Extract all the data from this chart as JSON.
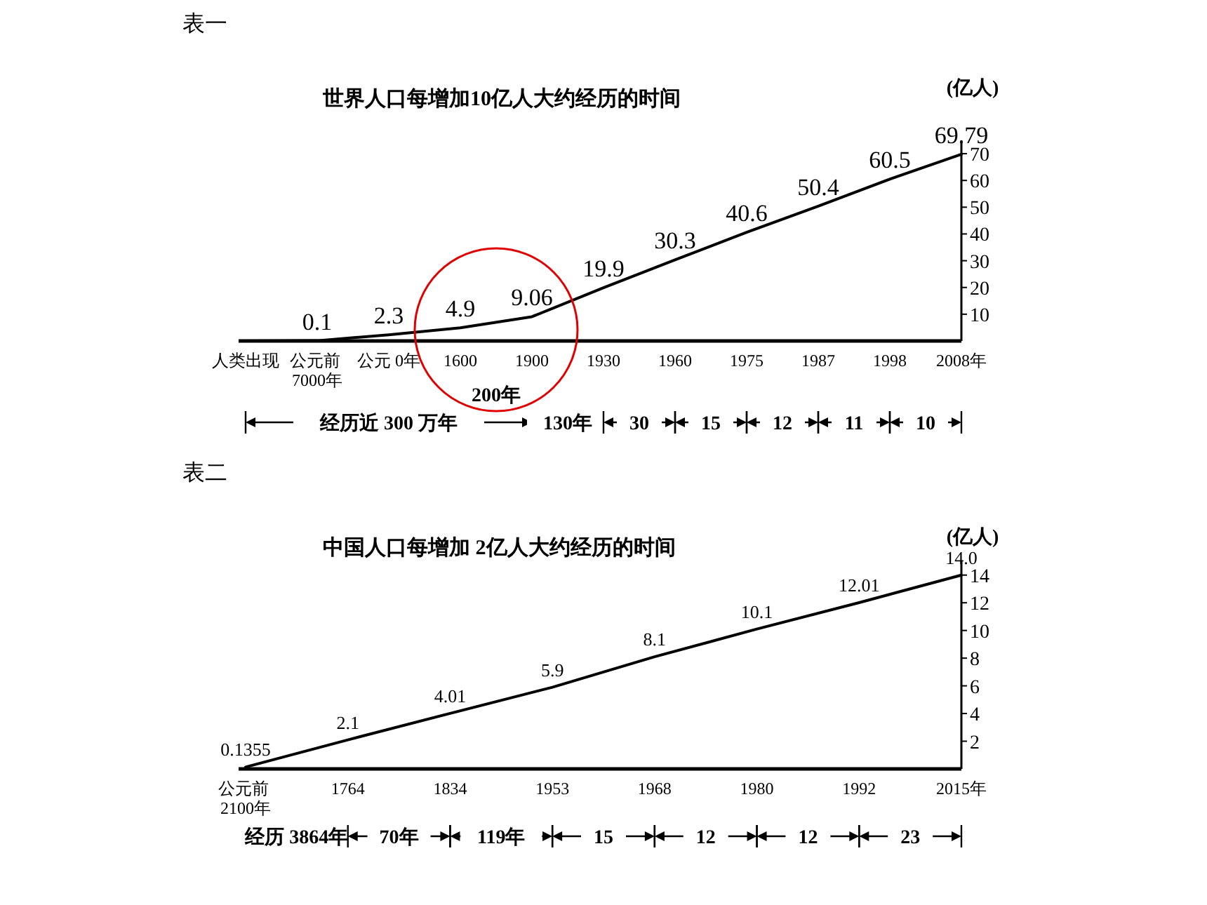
{
  "chart_data": [
    {
      "type": "line",
      "title": "世界人口每增加10亿人大约经历的时间",
      "ylabel": "(亿人)",
      "color": "#000000",
      "categories": [
        "人类出现",
        "公元前 7000年",
        "公元 0年",
        "1600",
        "1900",
        "1930",
        "1960",
        "1975",
        "1987",
        "1998",
        "2008年"
      ],
      "values": [
        0,
        0.1,
        2.3,
        4.9,
        9.06,
        19.9,
        30.3,
        40.6,
        50.4,
        60.5,
        69.79
      ],
      "value_labels": [
        null,
        "0.1",
        "2.3",
        "4.9",
        "9.06",
        "19.9",
        "30.3",
        "40.6",
        "50.4",
        "60.5",
        "69.79"
      ],
      "ylim": [
        0,
        75
      ],
      "yticks": [
        10,
        20,
        30,
        40,
        50,
        60,
        70
      ],
      "annotations": [
        "表一",
        "经历近 300 万年",
        "200年",
        "130年",
        "30",
        "15",
        "12",
        "11",
        "10"
      ]
    },
    {
      "type": "line",
      "title": "中国人口每增加 2亿人大约经历的时间",
      "ylabel": "(亿人)",
      "color": "#000000",
      "categories": [
        "公元前 2100年",
        "1764",
        "1834",
        "1953",
        "1968",
        "1980",
        "1992",
        "2015年"
      ],
      "values": [
        0.1355,
        2.1,
        4.01,
        5.9,
        8.1,
        10.1,
        12.01,
        14.0
      ],
      "value_labels": [
        "0.1355",
        "2.1",
        "4.01",
        "5.9",
        "8.1",
        "10.1",
        "12.01",
        "14.0"
      ],
      "ylim": [
        0,
        15
      ],
      "yticks": [
        2,
        4,
        6,
        8,
        10,
        12,
        14
      ],
      "annotations": [
        "表二",
        "经历 3864年",
        "70年",
        "119年",
        "15",
        "12",
        "12",
        "23"
      ]
    }
  ]
}
